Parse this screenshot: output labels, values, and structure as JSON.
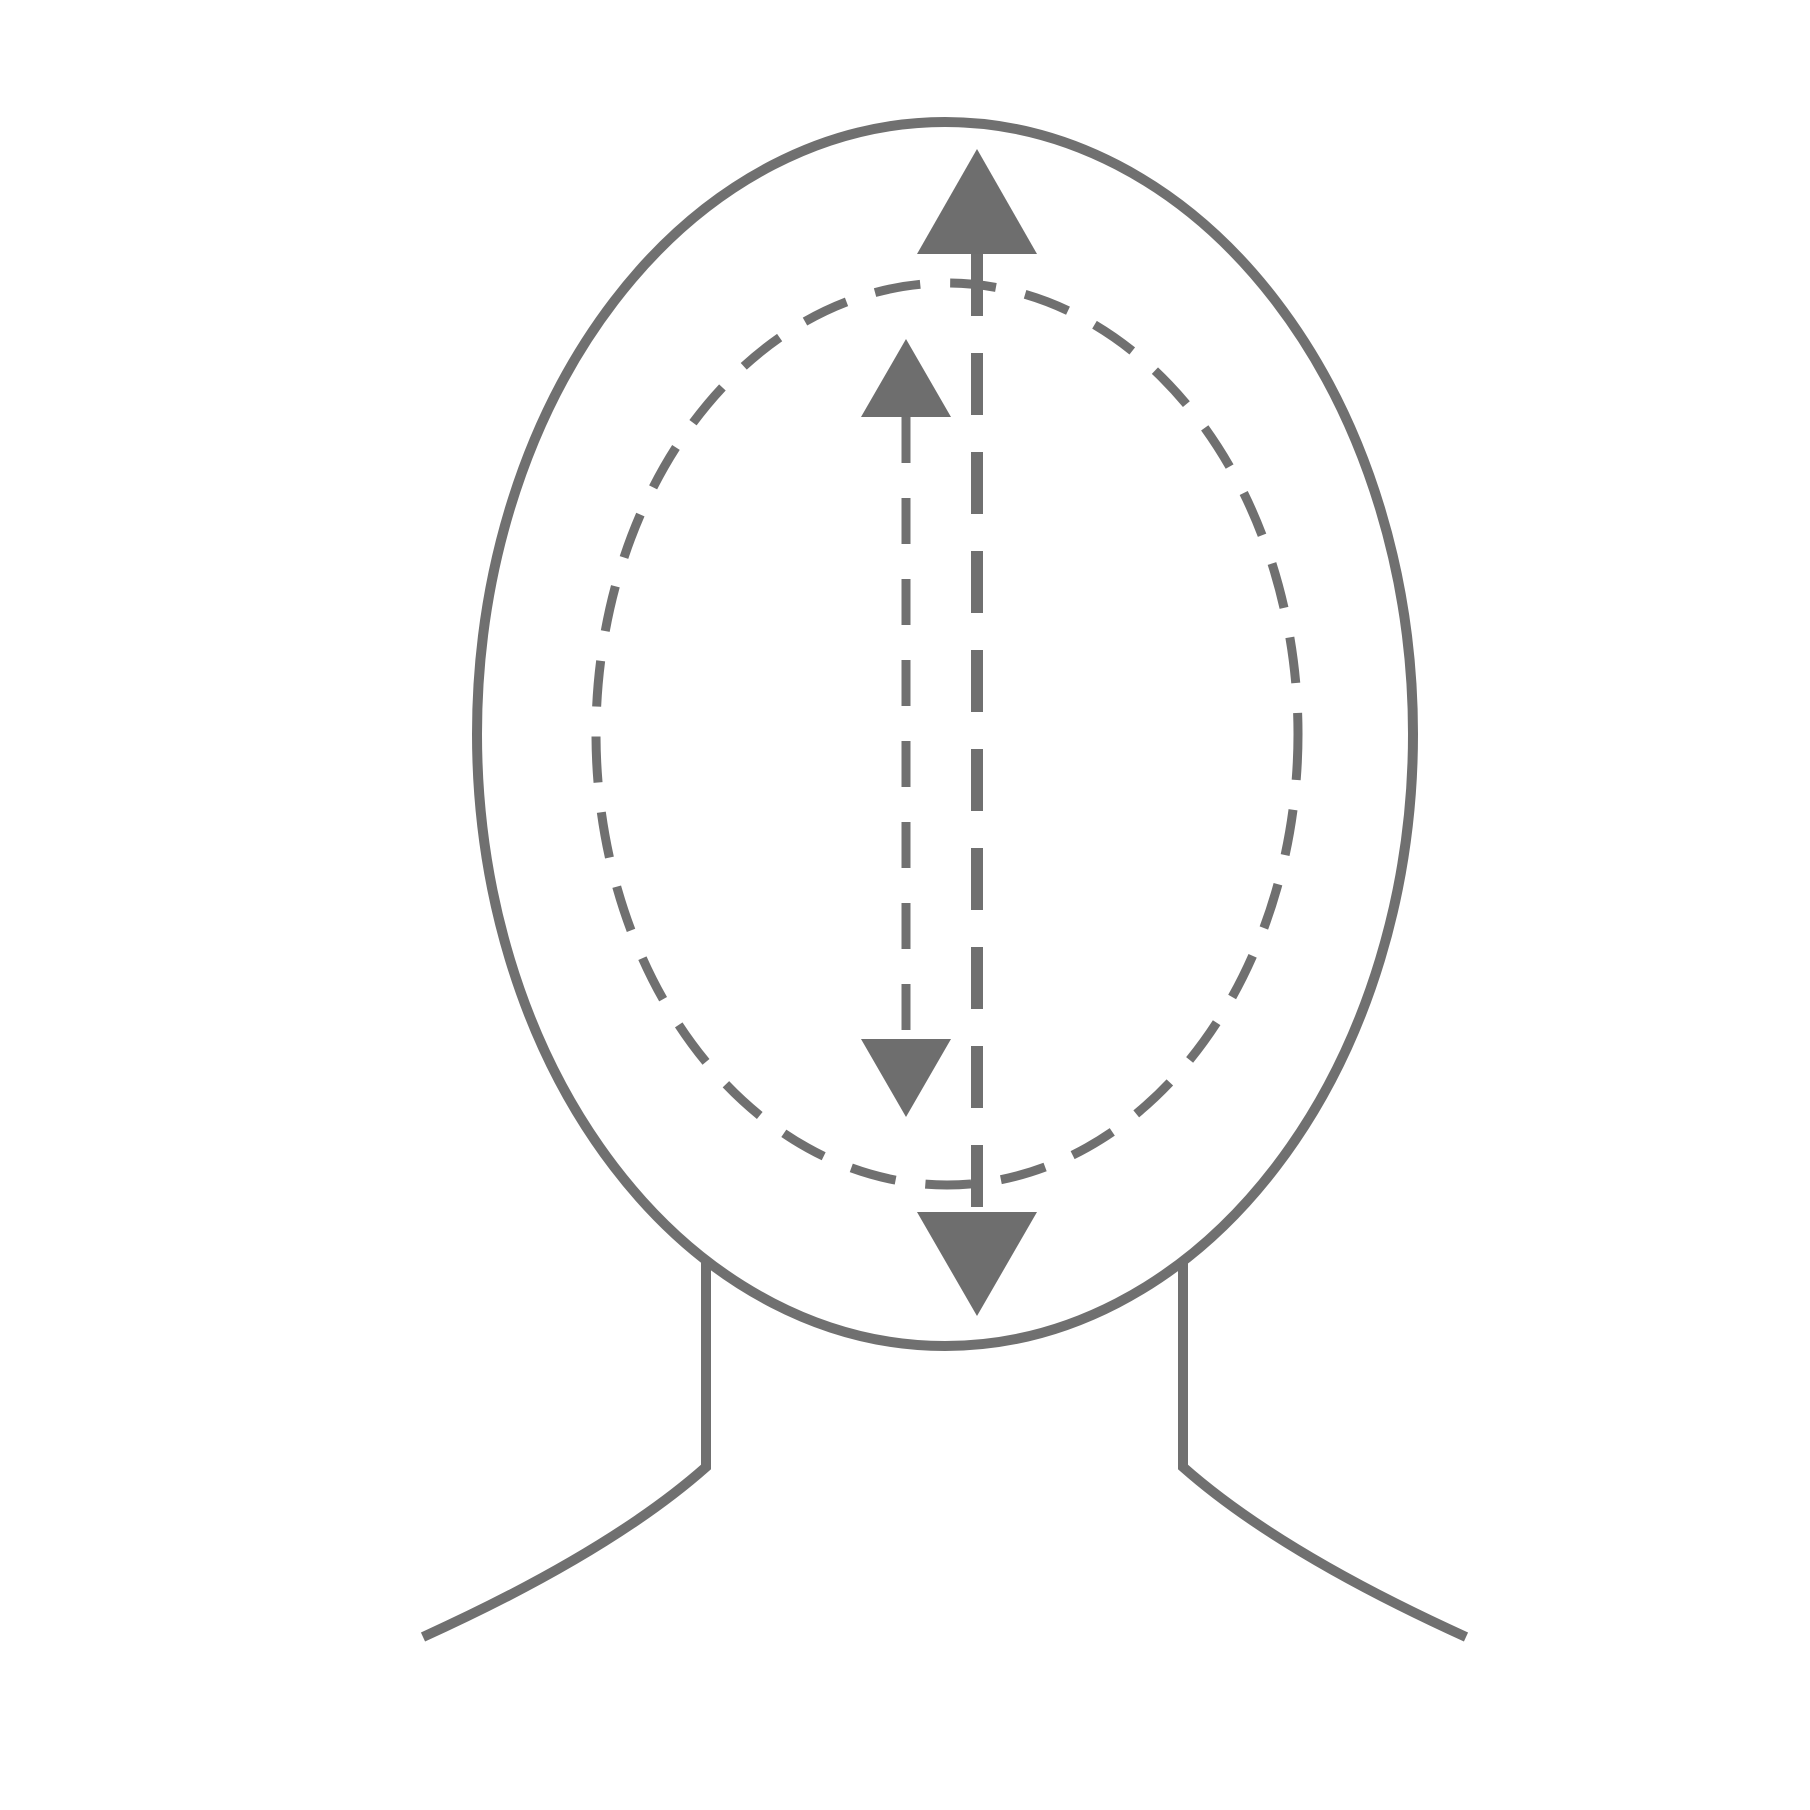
{
  "diagram": {
    "background_color": "#ffffff",
    "stroke_color": "#707070",
    "fill_color": "#6e6e6e",
    "elements": [
      "outer-head-outline",
      "neck-and-shoulders",
      "inner-dashed-oval",
      "long-dashed-double-arrow",
      "short-dashed-double-arrow"
    ]
  }
}
